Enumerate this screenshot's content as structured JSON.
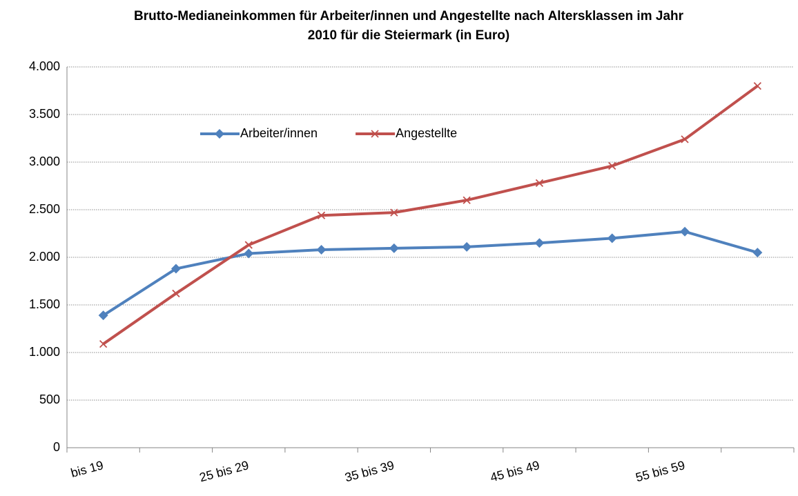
{
  "chart_data": {
    "type": "line",
    "title": "Brutto-Medianeinkommen für Arbeiter/innen und Angestellte nach Altersklassen im Jahr",
    "subtitle": "2010 für die Steiermark (in Euro)",
    "categories": [
      "bis 19",
      null,
      "25 bis 29",
      null,
      "35 bis 39",
      null,
      "45 bis 49",
      null,
      "55 bis 59",
      null
    ],
    "series": [
      {
        "name": "Arbeiter/innen",
        "color": "#4f81bd",
        "marker": "diamond",
        "values": [
          1390,
          1880,
          2040,
          2080,
          2095,
          2110,
          2150,
          2200,
          2270,
          2050
        ]
      },
      {
        "name": "Angestellte",
        "color": "#c0504d",
        "marker": "x",
        "values": [
          1090,
          1620,
          2130,
          2440,
          2470,
          2600,
          2780,
          2960,
          3240,
          3800
        ]
      }
    ],
    "ylim": [
      0,
      4000
    ],
    "yticks": [
      0,
      500,
      {
        "value": 1000,
        "label": "1.000"
      },
      {
        "value": 1500,
        "label": "1.500"
      },
      {
        "value": 2000,
        "label": "2.000"
      },
      {
        "value": 2500,
        "label": "2.500"
      },
      {
        "value": 3000,
        "label": "3.000"
      },
      {
        "value": 3500,
        "label": "3.500"
      },
      {
        "value": 4000,
        "label": "4.000"
      }
    ],
    "grid": true,
    "legend": "top-left"
  }
}
